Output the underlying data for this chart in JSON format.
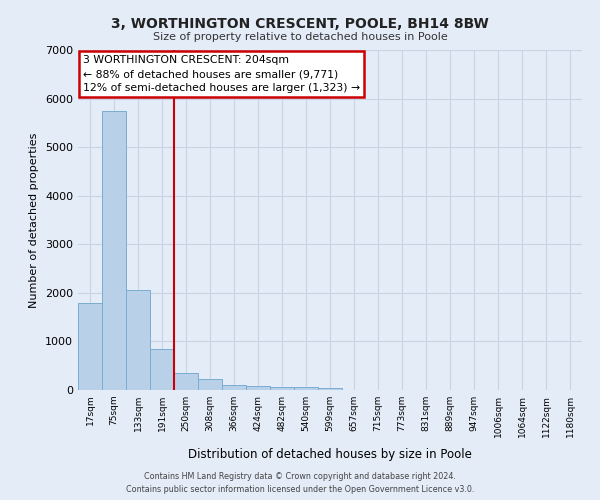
{
  "title": "3, WORTHINGTON CRESCENT, POOLE, BH14 8BW",
  "subtitle": "Size of property relative to detached houses in Poole",
  "xlabel": "Distribution of detached houses by size in Poole",
  "ylabel": "Number of detached properties",
  "bar_labels": [
    "17sqm",
    "75sqm",
    "133sqm",
    "191sqm",
    "250sqm",
    "308sqm",
    "366sqm",
    "424sqm",
    "482sqm",
    "540sqm",
    "599sqm",
    "657sqm",
    "715sqm",
    "773sqm",
    "831sqm",
    "889sqm",
    "947sqm",
    "1006sqm",
    "1064sqm",
    "1122sqm",
    "1180sqm"
  ],
  "bar_values": [
    1800,
    5750,
    2050,
    840,
    350,
    220,
    110,
    90,
    65,
    55,
    50,
    0,
    0,
    0,
    0,
    0,
    0,
    0,
    0,
    0,
    0
  ],
  "bar_color": "#b8d0e8",
  "bar_edge_color": "#7aadd4",
  "vline_x": 3.5,
  "vline_color": "#cc0000",
  "ylim": [
    0,
    7000
  ],
  "yticks": [
    0,
    1000,
    2000,
    3000,
    4000,
    5000,
    6000,
    7000
  ],
  "annotation_title": "3 WORTHINGTON CRESCENT: 204sqm",
  "annotation_line1": "← 88% of detached houses are smaller (9,771)",
  "annotation_line2": "12% of semi-detached houses are larger (1,323) →",
  "annotation_box_color": "#ffffff",
  "annotation_box_edge": "#cc0000",
  "grid_color": "#c8d4e4",
  "bg_color": "#e4ecf8",
  "footer1": "Contains HM Land Registry data © Crown copyright and database right 2024.",
  "footer2": "Contains public sector information licensed under the Open Government Licence v3.0."
}
